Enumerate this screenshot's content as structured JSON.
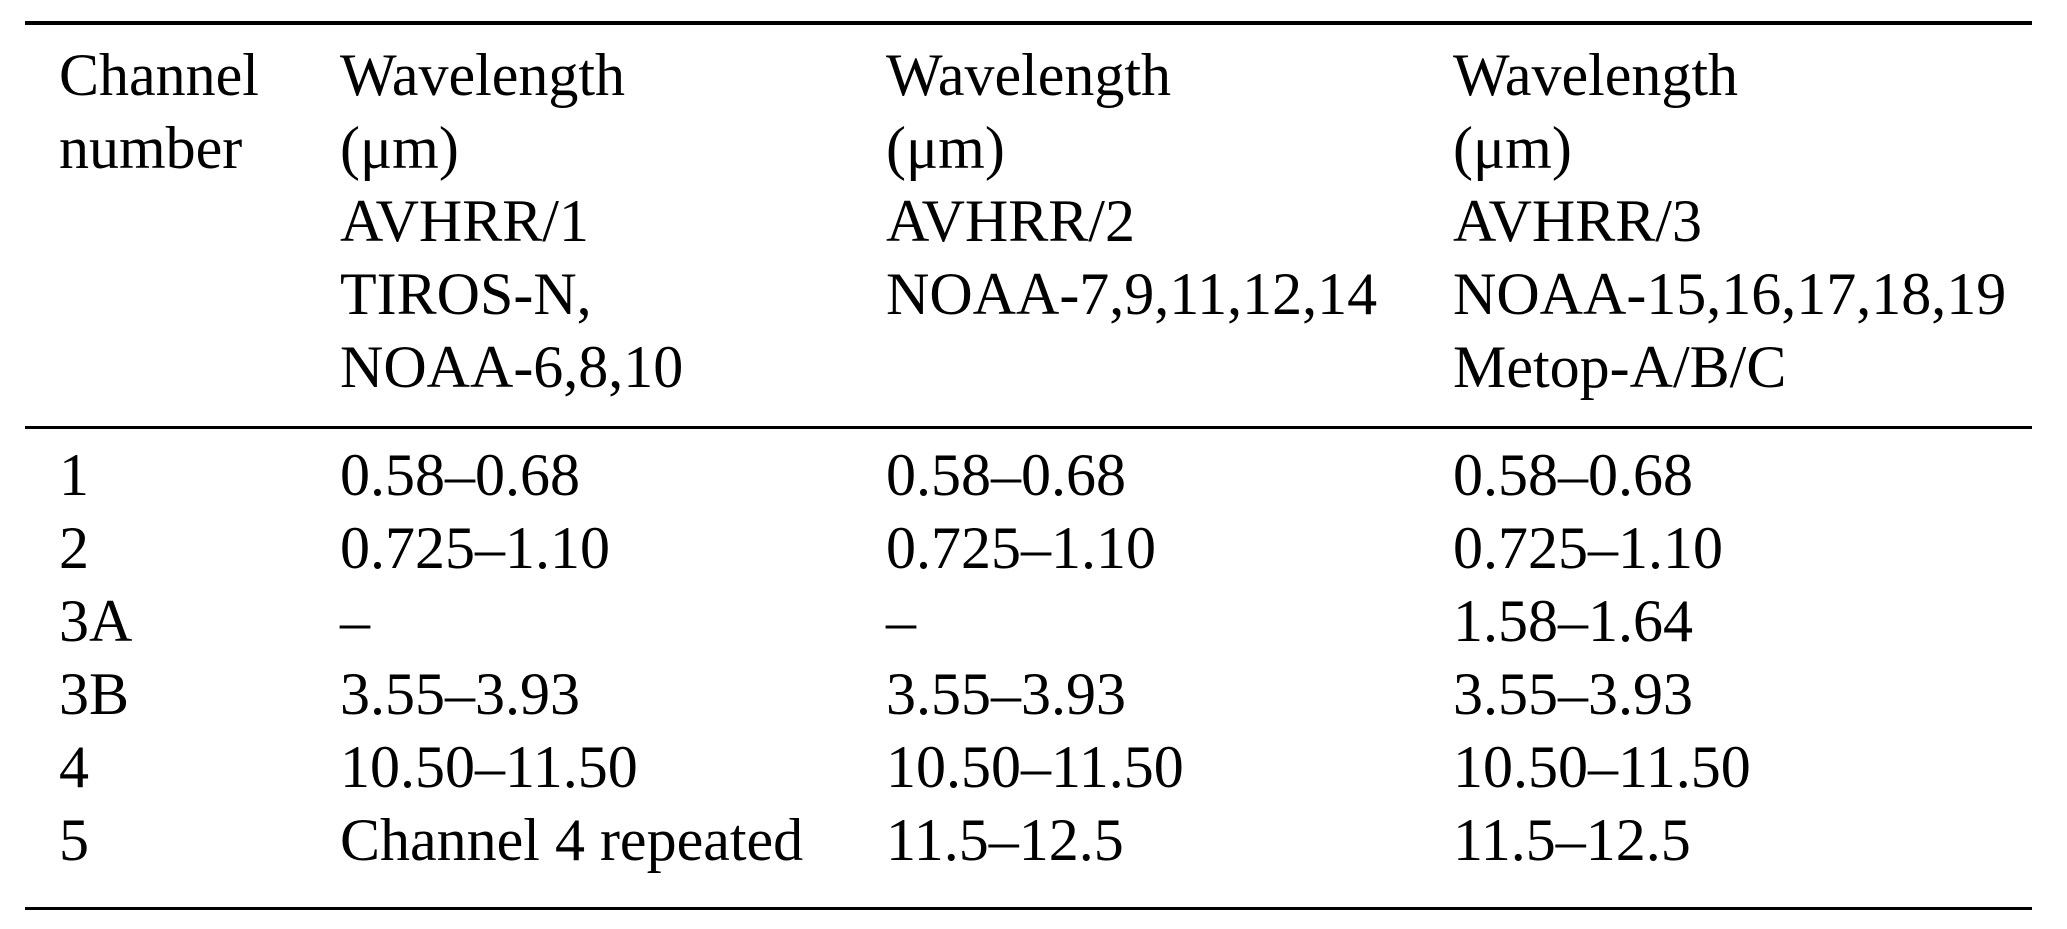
{
  "colors": {
    "background": "#ffffff",
    "text": "#000000",
    "rule": "#000000"
  },
  "table": {
    "columns": [
      {
        "header": "Channel\nnumber"
      },
      {
        "header": "Wavelength\n(μm)\nAVHRR/1\nTIROS-N,\nNOAA-6,8,10"
      },
      {
        "header": "Wavelength\n(μm)\nAVHRR/2\nNOAA-7,9,11,12,14"
      },
      {
        "header": "Wavelength\n(μm)\nAVHRR/3\nNOAA-15,16,17,18,19\nMetop-A/B/C"
      }
    ],
    "rows": [
      [
        "1",
        "0.58–0.68",
        "0.58–0.68",
        "0.58–0.68"
      ],
      [
        "2",
        "0.725–1.10",
        "0.725–1.10",
        "0.725–1.10"
      ],
      [
        "3A",
        "–",
        "–",
        "1.58–1.64"
      ],
      [
        "3B",
        "3.55–3.93",
        "3.55–3.93",
        "3.55–3.93"
      ],
      [
        "4",
        "10.50–11.50",
        "10.50–11.50",
        "10.50–11.50"
      ],
      [
        "5",
        "Channel 4 repeated",
        "11.5–12.5",
        "11.5–12.5"
      ]
    ]
  }
}
